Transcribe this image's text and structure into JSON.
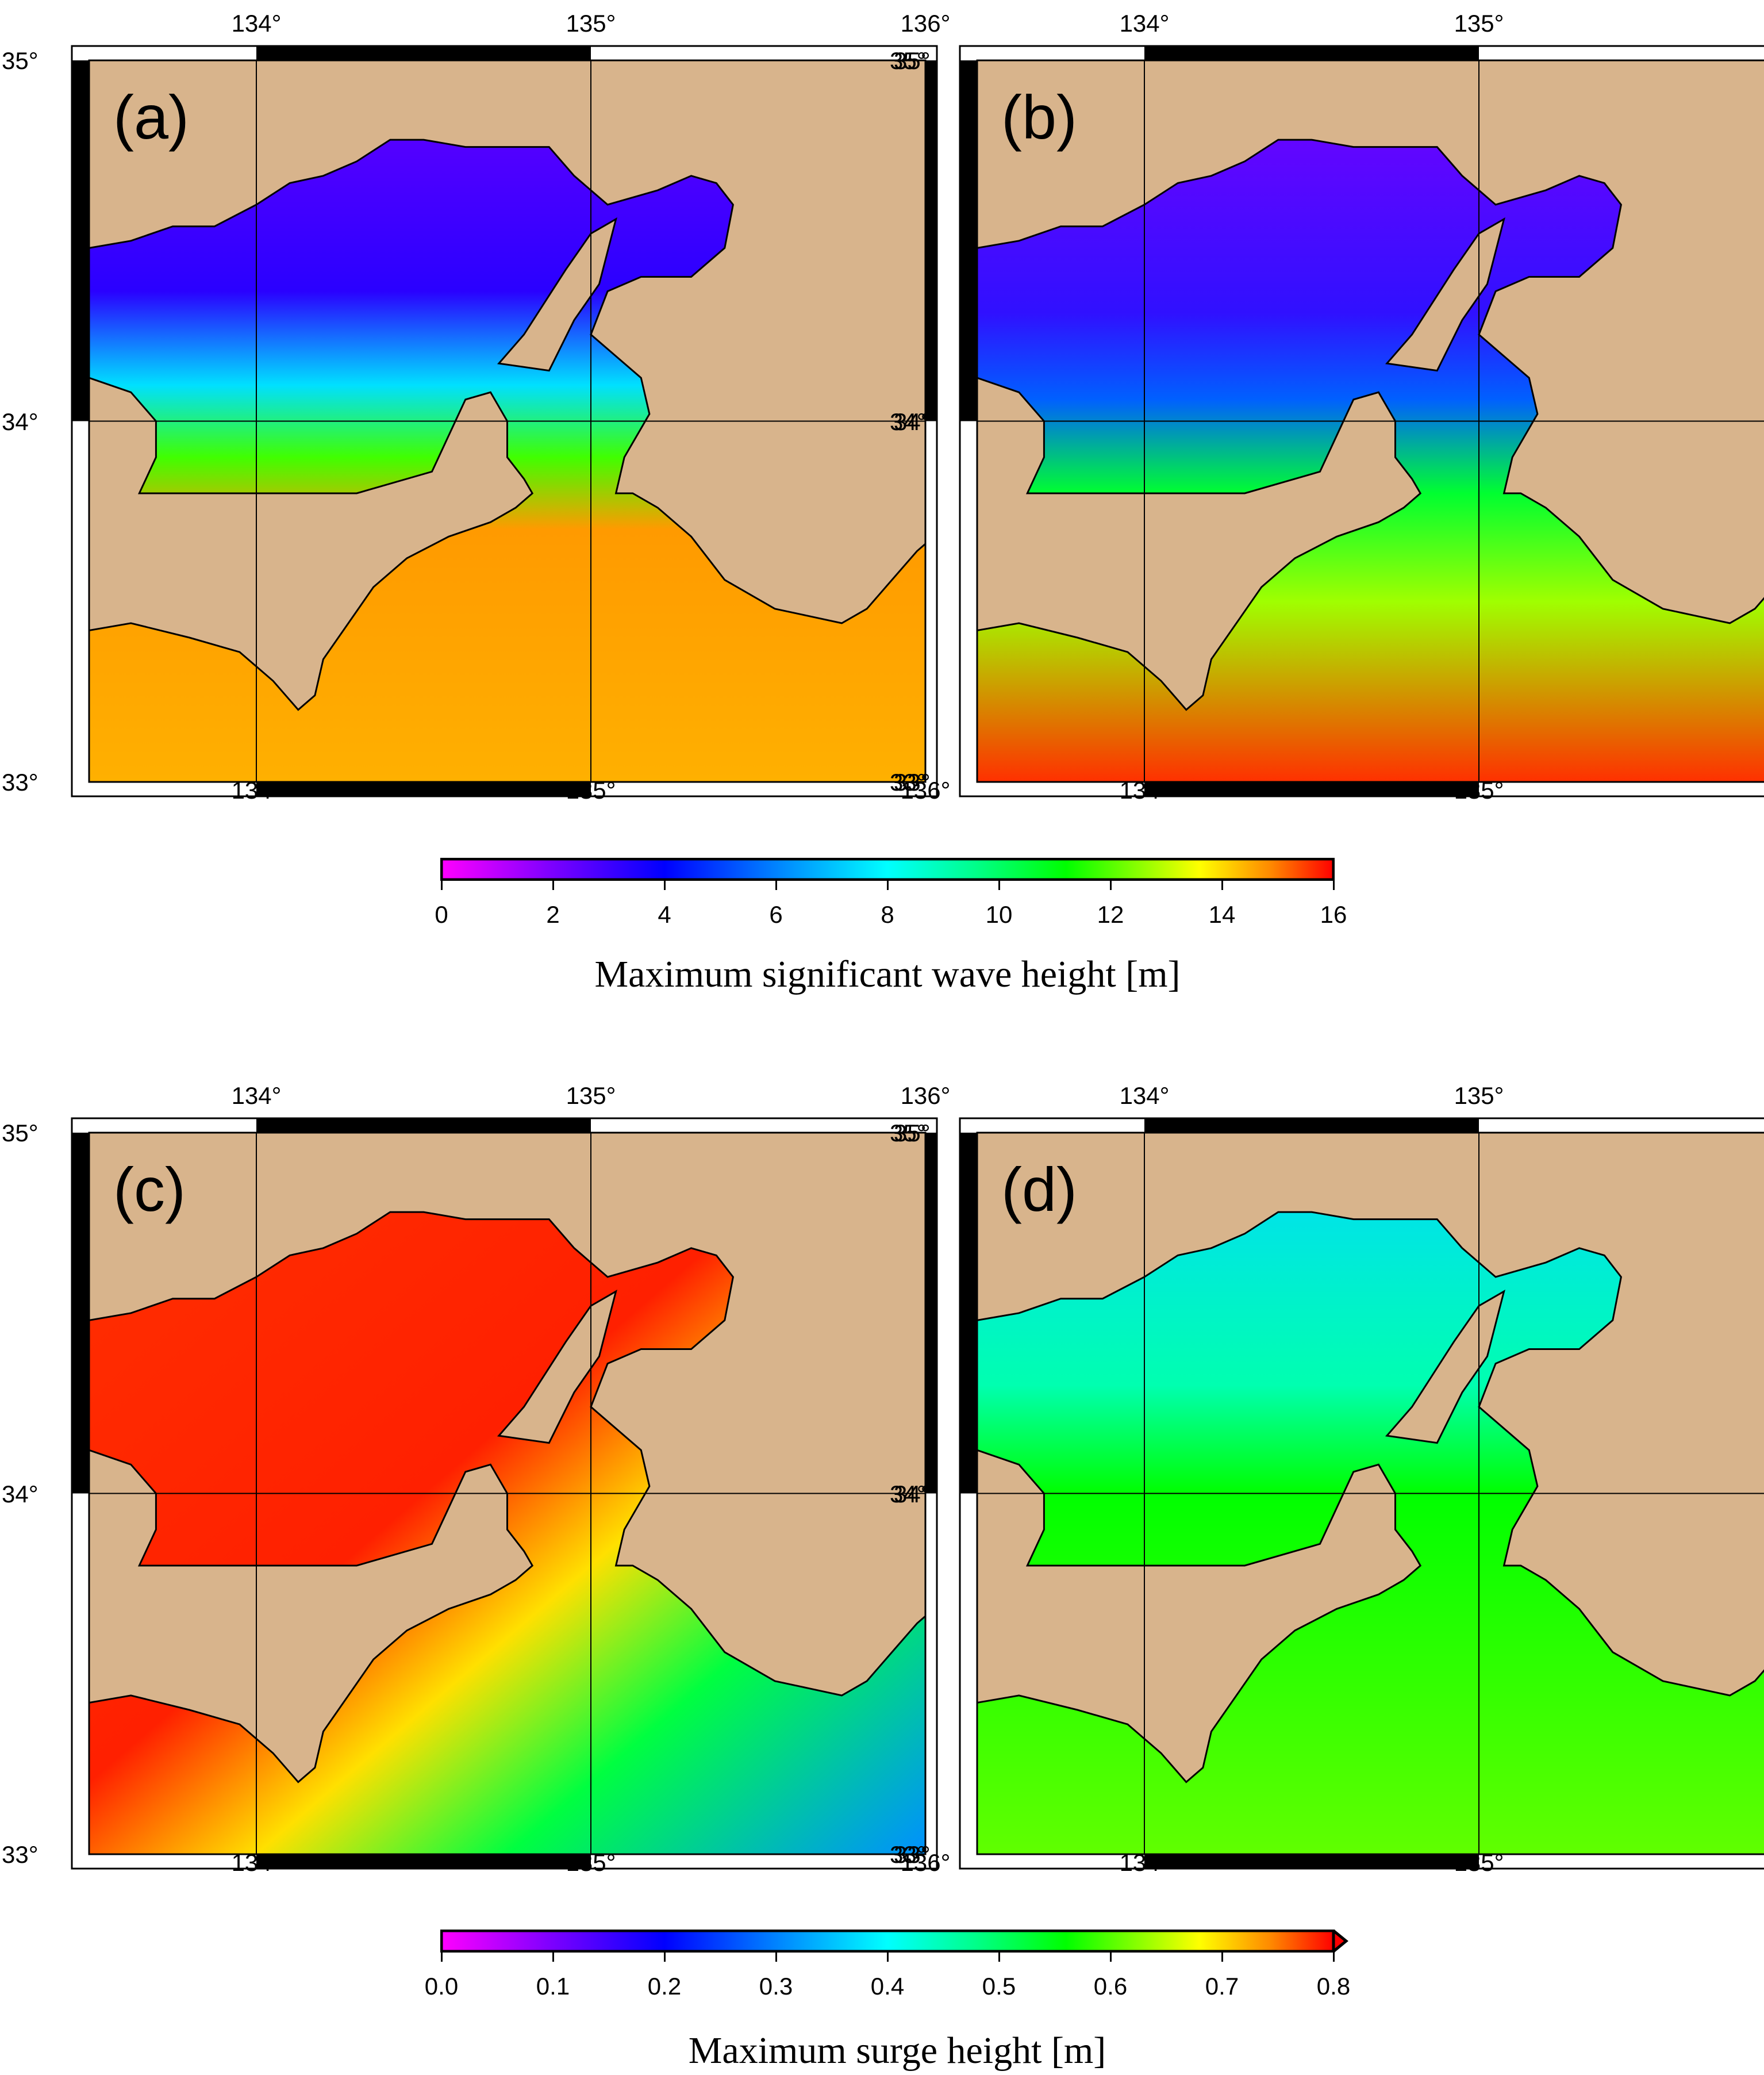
{
  "panels": [
    {
      "label": "(a)",
      "field": "wave"
    },
    {
      "label": "(b)",
      "field": "wave2"
    },
    {
      "label": "(c)",
      "field": "surge"
    },
    {
      "label": "(d)",
      "field": "surge2"
    }
  ],
  "axes": {
    "lon_ticks": [
      "134°",
      "135°",
      "136°"
    ],
    "lat_ticks": [
      "35°",
      "34°",
      "33°"
    ]
  },
  "colorbars": {
    "wave": {
      "ticks": [
        "0",
        "2",
        "4",
        "6",
        "8",
        "10",
        "12",
        "14",
        "16"
      ],
      "title": "Maximum significant wave height [m]",
      "range": [
        0,
        16
      ]
    },
    "surge": {
      "ticks": [
        "0.0",
        "0.1",
        "0.2",
        "0.3",
        "0.4",
        "0.5",
        "0.6",
        "0.7",
        "0.8"
      ],
      "title": "Maximum surge height [m]",
      "range": [
        0,
        0.8
      ],
      "extend": "max"
    }
  },
  "colors": {
    "land": "#d8b48c",
    "colormap": [
      "#ff00ff",
      "#8a00ff",
      "#0000ff",
      "#0080ff",
      "#00ffff",
      "#00ff80",
      "#00ff00",
      "#80ff00",
      "#ffff00",
      "#ff8000",
      "#ff0000"
    ]
  }
}
